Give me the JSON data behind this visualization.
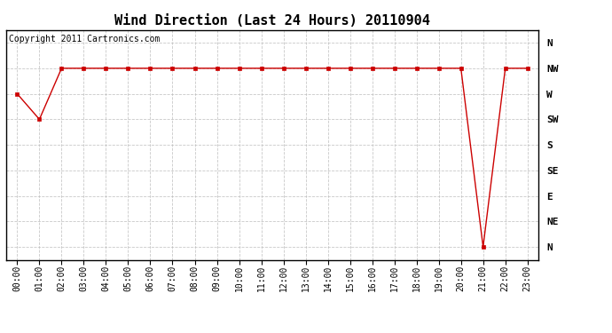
{
  "title": "Wind Direction (Last 24 Hours) 20110904",
  "copyright_text": "Copyright 2011 Cartronics.com",
  "x_labels": [
    "00:00",
    "01:00",
    "02:00",
    "03:00",
    "04:00",
    "05:00",
    "06:00",
    "07:00",
    "08:00",
    "09:00",
    "10:00",
    "11:00",
    "12:00",
    "13:00",
    "14:00",
    "15:00",
    "16:00",
    "17:00",
    "18:00",
    "19:00",
    "20:00",
    "21:00",
    "22:00",
    "23:00"
  ],
  "y_ticks_labels": [
    "N",
    "NW",
    "W",
    "SW",
    "S",
    "SE",
    "E",
    "NE",
    "N"
  ],
  "y_ticks_values": [
    8,
    7,
    6,
    5,
    4,
    3,
    2,
    1,
    0
  ],
  "wind_data": {
    "0": 6,
    "1": 5,
    "2": 7,
    "3": 7,
    "4": 7,
    "5": 7,
    "6": 7,
    "7": 7,
    "8": 7,
    "9": 7,
    "10": 7,
    "11": 7,
    "12": 7,
    "13": 7,
    "14": 7,
    "15": 7,
    "16": 7,
    "17": 7,
    "18": 7,
    "19": 7,
    "20": 7,
    "21": 0,
    "22": 7,
    "23": 7
  },
  "line_color": "#cc0000",
  "marker": "s",
  "marker_size": 3,
  "bg_color": "#ffffff",
  "plot_bg_color": "#ffffff",
  "grid_color": "#bbbbbb",
  "title_fontsize": 11,
  "tick_fontsize": 7,
  "copyright_fontsize": 7
}
